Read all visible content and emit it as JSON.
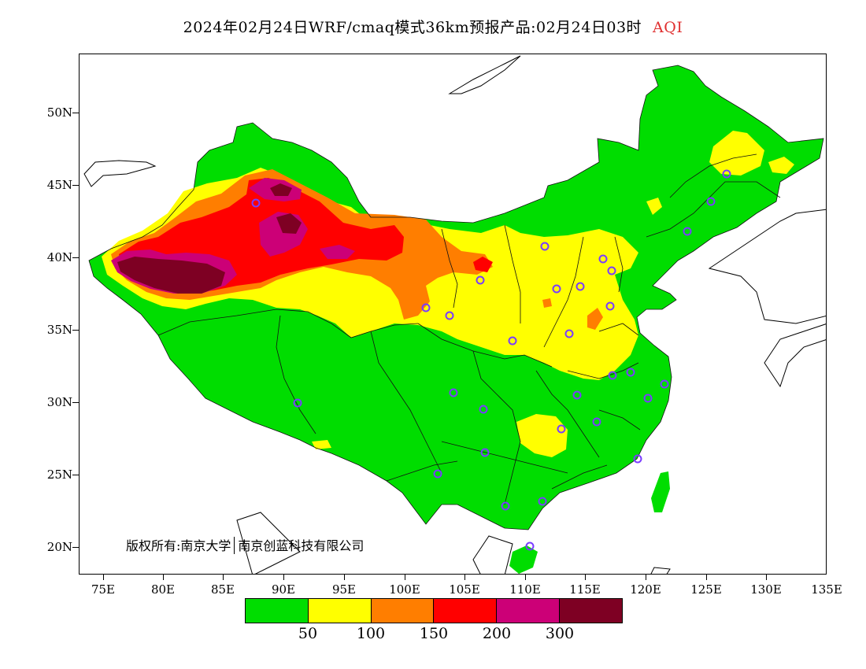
{
  "title": {
    "main": "2024年02月24日WRF/cmaq模式36km预报产品:02月24日03时",
    "variable": "AQI"
  },
  "axes": {
    "y_labels": [
      "50N",
      "45N",
      "40N",
      "35N",
      "30N",
      "25N",
      "20N"
    ],
    "x_labels": [
      "75E",
      "80E",
      "85E",
      "90E",
      "95E",
      "100E",
      "105E",
      "110E",
      "115E",
      "120E",
      "125E",
      "130E",
      "135E"
    ]
  },
  "legend": {
    "colors": [
      "#00dd00",
      "#ffff00",
      "#ff7e00",
      "#ff0000",
      "#cc0077",
      "#7e0023"
    ],
    "labels": [
      "50",
      "100",
      "150",
      "200",
      "300"
    ]
  },
  "copyright": {
    "left": "版权所有:南京大学",
    "right": "南京创蓝科技有限公司"
  },
  "colors": {
    "land_background": "#ffffff",
    "station_marker": "#7a3cff",
    "province_border": "#000000"
  }
}
